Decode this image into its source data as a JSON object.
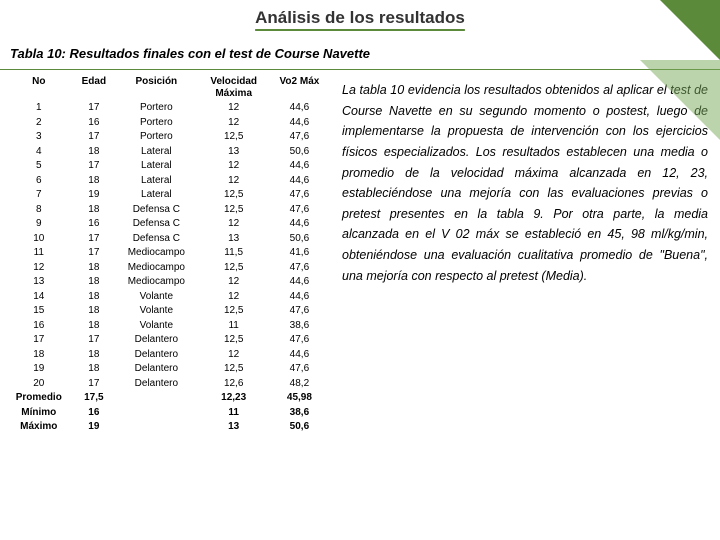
{
  "header": {
    "title": "Análisis de los resultados"
  },
  "subtitle": "Tabla 10:  Resultados finales con el test de Course Navette",
  "table": {
    "columns": [
      "No",
      "Edad",
      "Posición",
      "Velocidad Máxima",
      "Vo2 Máx"
    ],
    "rows": [
      [
        "1",
        "17",
        "Portero",
        "12",
        "44,6"
      ],
      [
        "2",
        "16",
        "Portero",
        "12",
        "44,6"
      ],
      [
        "3",
        "17",
        "Portero",
        "12,5",
        "47,6"
      ],
      [
        "4",
        "18",
        "Lateral",
        "13",
        "50,6"
      ],
      [
        "5",
        "17",
        "Lateral",
        "12",
        "44,6"
      ],
      [
        "6",
        "18",
        "Lateral",
        "12",
        "44,6"
      ],
      [
        "7",
        "19",
        "Lateral",
        "12,5",
        "47,6"
      ],
      [
        "8",
        "18",
        "Defensa C",
        "12,5",
        "47,6"
      ],
      [
        "9",
        "16",
        "Defensa C",
        "12",
        "44,6"
      ],
      [
        "10",
        "17",
        "Defensa C",
        "13",
        "50,6"
      ],
      [
        "11",
        "17",
        "Mediocampo",
        "11,5",
        "41,6"
      ],
      [
        "12",
        "18",
        "Mediocampo",
        "12,5",
        "47,6"
      ],
      [
        "13",
        "18",
        "Mediocampo",
        "12",
        "44,6"
      ],
      [
        "14",
        "18",
        "Volante",
        "12",
        "44,6"
      ],
      [
        "15",
        "18",
        "Volante",
        "12,5",
        "47,6"
      ],
      [
        "16",
        "18",
        "Volante",
        "11",
        "38,6"
      ],
      [
        "17",
        "17",
        "Delantero",
        "12,5",
        "47,6"
      ],
      [
        "18",
        "18",
        "Delantero",
        "12",
        "44,6"
      ],
      [
        "19",
        "18",
        "Delantero",
        "12,5",
        "47,6"
      ],
      [
        "20",
        "17",
        "Delantero",
        "12,6",
        "48,2"
      ]
    ],
    "summary": [
      [
        "Promedio",
        "17,5",
        "",
        "12,23",
        "45,98"
      ],
      [
        "Mínimo",
        "16",
        "",
        "11",
        "38,6"
      ],
      [
        "Máximo",
        "19",
        "",
        "13",
        "50,6"
      ]
    ]
  },
  "paragraph": "La tabla 10 evidencia los resultados obtenidos al aplicar el test de Course Navette en su segundo momento o postest, luego de implementarse la propuesta de intervención con los ejercicios físicos especializados. Los resultados establecen una media o promedio de la velocidad máxima alcanzada en 12, 23, estableciéndose una mejoría con las evaluaciones previas o pretest presentes en la tabla 9. Por otra parte, la media alcanzada en el V 02 máx se estableció en 45, 98 ml/kg/min, obteniéndose una evaluación cualitativa promedio de \"Buena\", una mejoría con respecto al pretest (Media)."
}
